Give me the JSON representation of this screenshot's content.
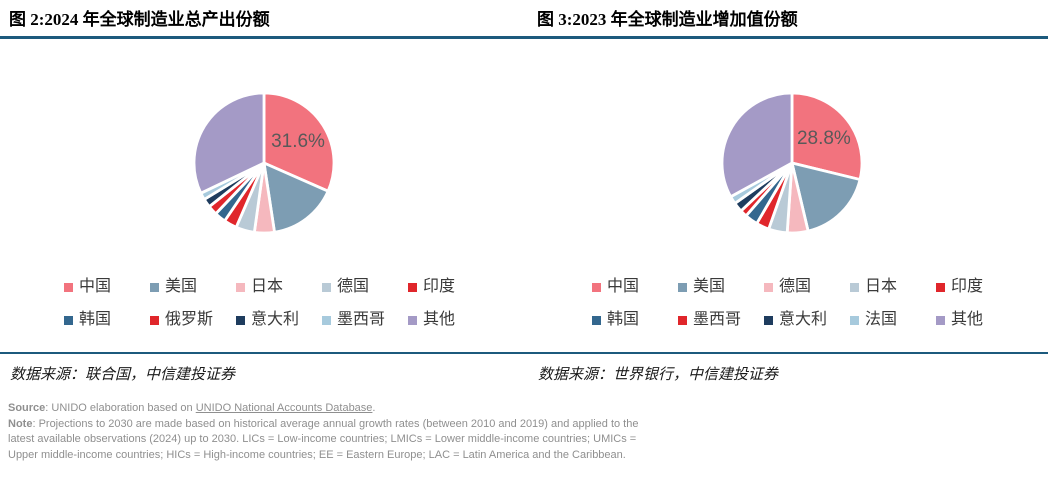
{
  "figures": [
    {
      "title": "图 2:2024 年全球制造业总产出份额",
      "source_label": "数据来源：联合国，中信建投证券"
    },
    {
      "title": "图 3:2023 年全球制造业增加值份额",
      "source_label": "数据来源：世界银行，中信建投证券"
    }
  ],
  "chart_data": [
    {
      "type": "pie",
      "title": "图 2:2024 年全球制造业总产出份额",
      "categories": [
        "中国",
        "美国",
        "日本",
        "德国",
        "印度",
        "韩国",
        "俄罗斯",
        "意大利",
        "墨西哥",
        "其他"
      ],
      "values": [
        31.6,
        16.0,
        4.6,
        4.3,
        3.0,
        2.6,
        2.2,
        2.0,
        1.6,
        32.1
      ],
      "colors": [
        "#F2737E",
        "#7D9DB3",
        "#F5B8BE",
        "#B9CAD6",
        "#E0262B",
        "#33678E",
        "#E0262B",
        "#1E3C5E",
        "#A7CADD",
        "#A49AC6"
      ],
      "unit": "%",
      "start_angle_deg": 0,
      "direction": "clockwise",
      "legend_position": "bottom",
      "data_labels": [
        {
          "category": "中国",
          "text": "31.6%"
        }
      ]
    },
    {
      "type": "pie",
      "title": "图 3:2023 年全球制造业增加值份额",
      "categories": [
        "中国",
        "美国",
        "德国",
        "日本",
        "印度",
        "韩国",
        "墨西哥",
        "意大利",
        "法国",
        "其他"
      ],
      "values": [
        28.8,
        17.5,
        4.8,
        4.3,
        3.0,
        3.0,
        1.6,
        2.2,
        1.8,
        33.0
      ],
      "colors": [
        "#F2737E",
        "#7D9DB3",
        "#F5B8BE",
        "#B9CAD6",
        "#E0262B",
        "#33678E",
        "#E0262B",
        "#1E3C5E",
        "#A7CADD",
        "#A49AC6"
      ],
      "unit": "%",
      "start_angle_deg": 0,
      "direction": "clockwise",
      "legend_position": "bottom",
      "data_labels": [
        {
          "category": "中国",
          "text": "28.8%"
        }
      ]
    }
  ],
  "footnote": {
    "source_prefix": "Source",
    "source_body": ": UNIDO elaboration based on ",
    "source_link": "UNIDO National Accounts Database",
    "source_end": ".",
    "note_prefix": "Note",
    "note_body": ": Projections to 2030 are made based on historical average annual growth rates (between 2010 and 2019) and applied to the latest available observations (2024) up to 2030. LICs = Low-income countries; LMICs = Lower middle-income countries; UMICs = Upper middle-income countries; HICs = High-income countries; EE = Eastern Europe; LAC = Latin America and the Caribbean."
  },
  "style_colors": {
    "divider": "#1C5A7D",
    "pie_label": "#595959",
    "note_text": "#8F8F8F"
  }
}
